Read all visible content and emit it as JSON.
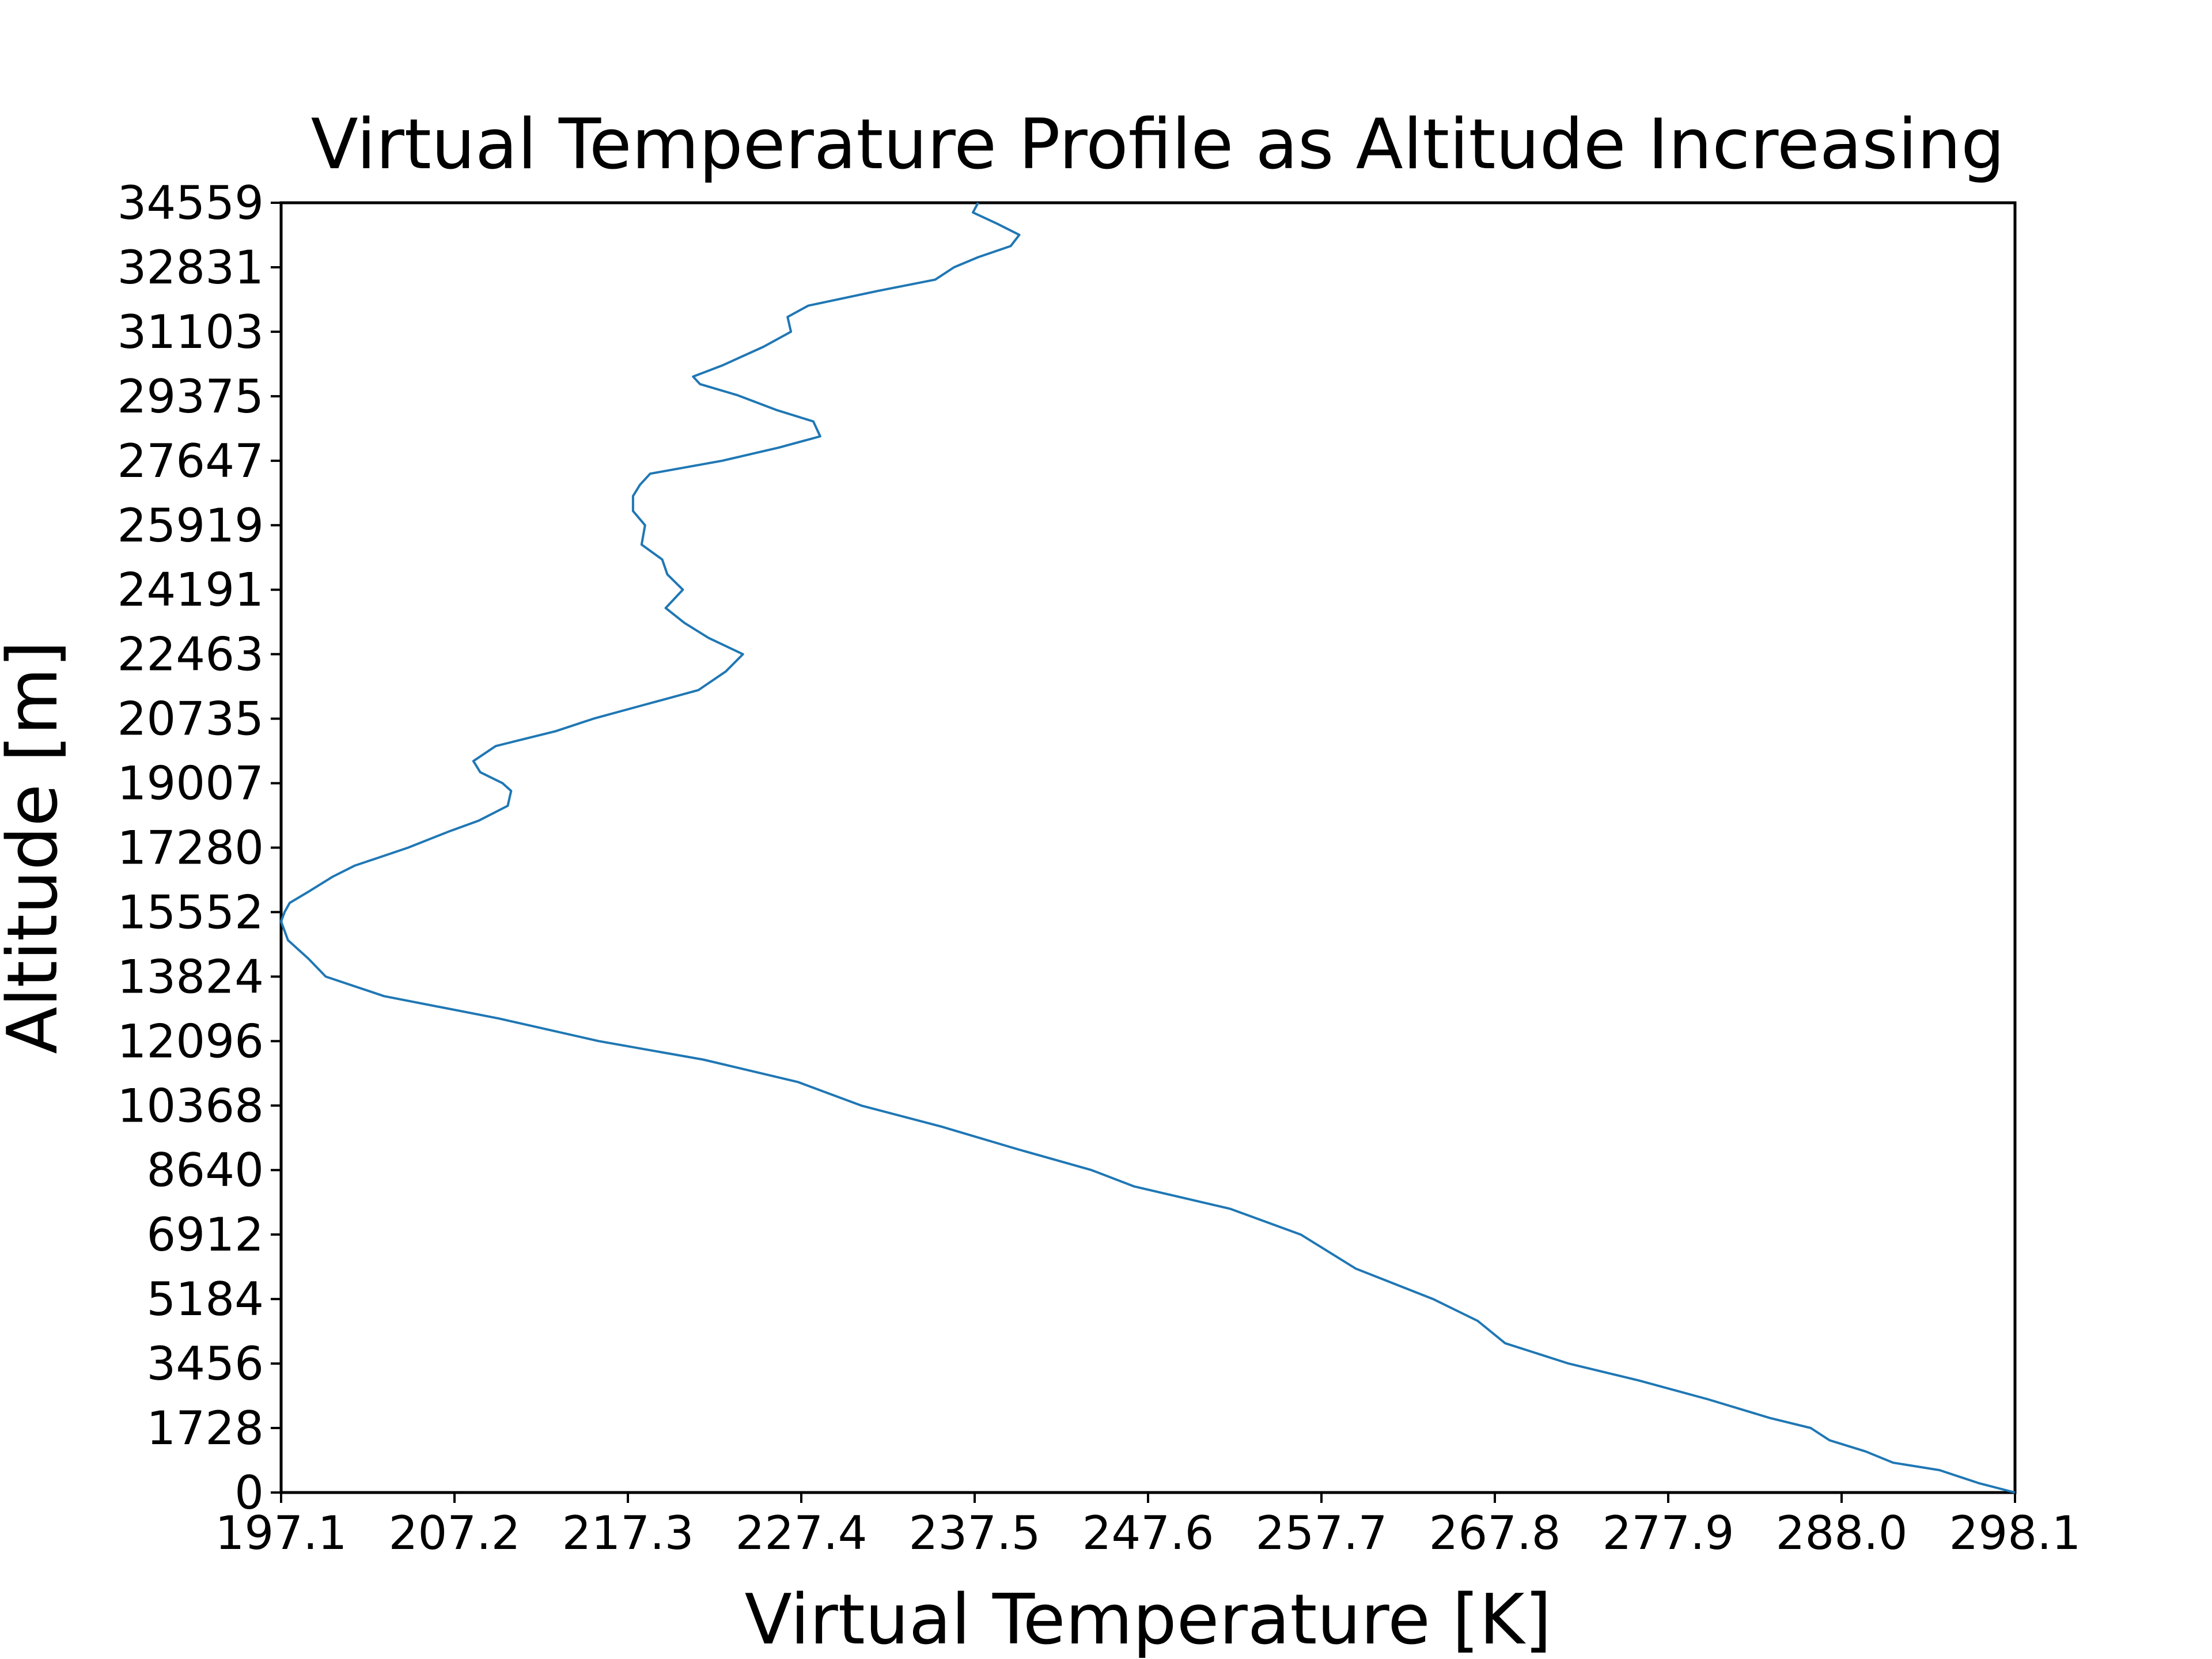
{
  "chart_data": {
    "type": "line",
    "title": "Virtual Temperature Profile as Altitude Increasing",
    "xlabel": "Virtual Temperature [K]",
    "ylabel": "Altitude [m]",
    "xlim": [
      197.1,
      298.1
    ],
    "ylim": [
      0,
      34559
    ],
    "x_ticks": [
      "197.1",
      "207.2",
      "217.3",
      "227.4",
      "237.5",
      "247.6",
      "257.7",
      "267.8",
      "277.9",
      "288.0",
      "298.1"
    ],
    "y_ticks": [
      "0",
      "1728",
      "3456",
      "5184",
      "6912",
      "8640",
      "10368",
      "12096",
      "13824",
      "15552",
      "17280",
      "19007",
      "20735",
      "22463",
      "24191",
      "25919",
      "27647",
      "29375",
      "31103",
      "32831",
      "34559"
    ],
    "grid": false,
    "legend": "none",
    "color": "#1f77b4",
    "series": [
      {
        "x": [
          298.1,
          296.0,
          293.7,
          291.0,
          289.4,
          287.3,
          286.2,
          283.8,
          280.2,
          276.2,
          272.1,
          268.4,
          266.8,
          264.2,
          259.7,
          256.5,
          252.4,
          246.8,
          244.3,
          240.0,
          235.6,
          230.9,
          227.2,
          221.7,
          215.6,
          209.8,
          203.1,
          199.7,
          198.7,
          197.5,
          197.1,
          197.3,
          197.6,
          198.7,
          200.1,
          201.4,
          202.7,
          204.5,
          206.8,
          208.6,
          210.3,
          210.5,
          210.0,
          208.7,
          208.3,
          209.6,
          213.1,
          215.3,
          218.2,
          221.4,
          223.0,
          224.0,
          222.0,
          220.6,
          219.5,
          220.5,
          219.6,
          219.3,
          218.1,
          218.3,
          217.6,
          217.6,
          218.0,
          218.6,
          222.8,
          226.1,
          228.5,
          228.1,
          226.0,
          223.7,
          221.5,
          221.1,
          222.8,
          225.2,
          226.8,
          226.6,
          227.8,
          231.9,
          235.2,
          236.3,
          237.7,
          239.6,
          240.1,
          238.8,
          237.4,
          237.7
        ],
        "y": [
          0,
          250,
          600,
          800,
          1100,
          1400,
          1728,
          2000,
          2500,
          3000,
          3456,
          4000,
          4600,
          5184,
          6000,
          6912,
          7600,
          8200,
          8640,
          9200,
          9800,
          10368,
          11000,
          11600,
          12096,
          12700,
          13300,
          13824,
          14300,
          14800,
          15300,
          15552,
          15800,
          16100,
          16500,
          16800,
          17000,
          17280,
          17700,
          18000,
          18400,
          18800,
          19007,
          19300,
          19600,
          20000,
          20400,
          20735,
          21100,
          21500,
          22000,
          22463,
          22900,
          23300,
          23700,
          24191,
          24600,
          25000,
          25400,
          25919,
          26300,
          26700,
          27000,
          27300,
          27647,
          28000,
          28300,
          28700,
          29000,
          29400,
          29700,
          29900,
          30200,
          30700,
          31103,
          31500,
          31800,
          32200,
          32500,
          32831,
          33100,
          33400,
          33700,
          34000,
          34300,
          34559
        ]
      }
    ]
  }
}
